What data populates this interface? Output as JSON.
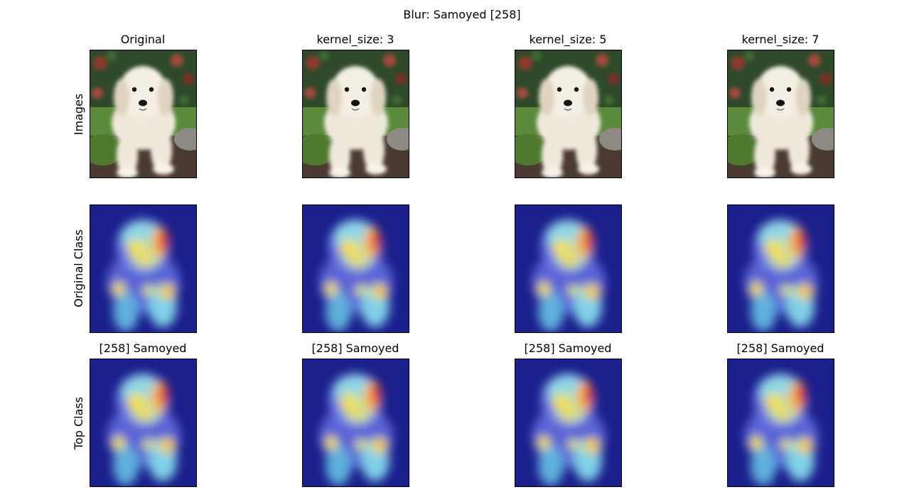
{
  "figure": {
    "suptitle": "Blur: Samoyed [258]",
    "column_titles": [
      "Original",
      "kernel_size: 3",
      "kernel_size: 5",
      "kernel_size: 7"
    ],
    "row_labels": [
      "Images",
      "Original Class",
      "Top Class"
    ],
    "top_class_titles": [
      "[258] Samoyed",
      "[258] Samoyed",
      "[258] Samoyed",
      "[258] Samoyed"
    ]
  },
  "panels": {
    "image_kind": "photo-of-white-puppy",
    "heatmap_kind": "class-activation-heatmap-overlay",
    "colors": {
      "heat_low": "#1a1f8c",
      "heat_mid": "#7fd0e8",
      "heat_warm": "#f2e04a",
      "heat_high": "#e8423a",
      "fur": "#efe9dc",
      "foliage": "#2f4a2a",
      "grass": "#5a8a3a"
    }
  }
}
